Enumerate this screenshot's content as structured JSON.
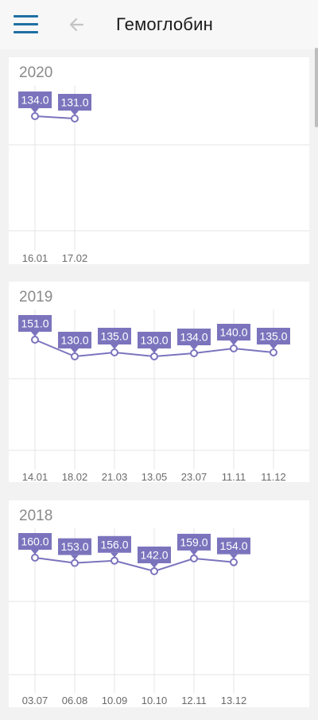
{
  "header": {
    "title": "Гемоглобин",
    "menu_icon": "hamburger-menu-icon",
    "back_icon": "arrow-left-icon"
  },
  "colors": {
    "accent": "#7b74bd",
    "gridline": "#e4e4e4",
    "header_icon": "#1f6fa3",
    "back_icon": "#c4c4c4"
  },
  "chart_data": [
    {
      "type": "line",
      "title": "2020",
      "x": [
        "16.01",
        "17.02"
      ],
      "values": [
        134.0,
        131.0
      ],
      "labels": [
        "134.0",
        "131.0"
      ]
    },
    {
      "type": "line",
      "title": "2019",
      "x": [
        "14.01",
        "18.02",
        "21.03",
        "13.05",
        "23.07",
        "11.11",
        "11.12"
      ],
      "values": [
        151.0,
        130.0,
        135.0,
        130.0,
        134.0,
        140.0,
        135.0
      ],
      "labels": [
        "151.0",
        "130.0",
        "135.0",
        "130.0",
        "134.0",
        "140.0",
        "135.0"
      ]
    },
    {
      "type": "line",
      "title": "2018",
      "x": [
        "03.07",
        "06.08",
        "10.09",
        "10.10",
        "12.11",
        "13.12"
      ],
      "values": [
        160.0,
        153.0,
        156.0,
        142.0,
        159.0,
        154.0
      ],
      "labels": [
        "160.0",
        "153.0",
        "156.0",
        "142.0",
        "159.0",
        "154.0"
      ]
    }
  ]
}
